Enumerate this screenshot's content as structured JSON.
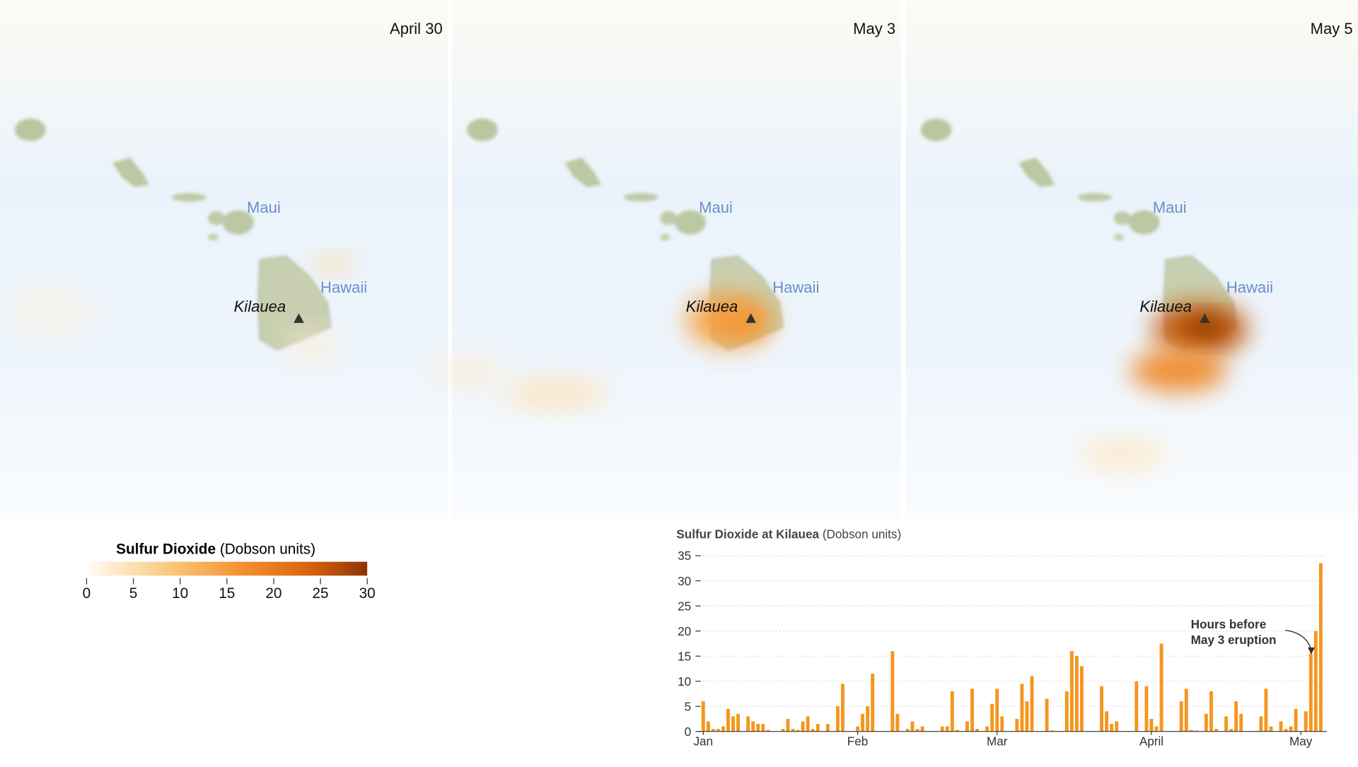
{
  "maps": {
    "panels": [
      {
        "date": "April 30"
      },
      {
        "date": "May 3"
      },
      {
        "date": "May 5"
      }
    ],
    "labels": {
      "maui": "Maui",
      "hawaii": "Hawaii",
      "kilauea": "Kilauea"
    }
  },
  "legend": {
    "title": "Sulfur Dioxide",
    "units": "(Dobson units)",
    "ticks": [
      0,
      5,
      10,
      15,
      20,
      25,
      30
    ],
    "range": [
      0,
      30
    ]
  },
  "chart_data": {
    "type": "bar",
    "title": "Sulfur Dioxide at Kilauea",
    "units": "(Dobson units)",
    "color": "#f5961f",
    "grid": true,
    "ylim": [
      0,
      35
    ],
    "yticks": [
      0,
      5,
      10,
      15,
      20,
      25,
      30,
      35
    ],
    "annotation": [
      "Hours before",
      "May 3 eruption"
    ],
    "categories": [
      "Jan",
      null,
      null,
      null,
      null,
      null,
      null,
      null,
      null,
      null,
      null,
      null,
      null,
      null,
      null,
      null,
      null,
      null,
      null,
      null,
      null,
      null,
      null,
      null,
      null,
      null,
      null,
      null,
      null,
      null,
      null,
      "Feb",
      null,
      null,
      null,
      null,
      null,
      null,
      null,
      null,
      null,
      null,
      null,
      null,
      null,
      null,
      null,
      null,
      null,
      null,
      null,
      null,
      null,
      null,
      null,
      null,
      null,
      null,
      null,
      "Mar",
      null,
      null,
      null,
      null,
      null,
      null,
      null,
      null,
      null,
      null,
      null,
      null,
      null,
      null,
      null,
      null,
      null,
      null,
      null,
      null,
      null,
      null,
      null,
      null,
      null,
      null,
      null,
      null,
      null,
      null,
      "April",
      null,
      null,
      null,
      null,
      null,
      null,
      null,
      null,
      null,
      null,
      null,
      null,
      null,
      null,
      null,
      null,
      null,
      null,
      null,
      null,
      null,
      null,
      null,
      null,
      null,
      null,
      null,
      null,
      null,
      "May",
      null,
      null,
      null,
      null
    ],
    "values": [
      6,
      2,
      0.5,
      0.5,
      1,
      4.5,
      3,
      3.5,
      0,
      3,
      2,
      1.5,
      1.5,
      0.3,
      0,
      0,
      0.5,
      2.5,
      0.5,
      0.3,
      2,
      3,
      0.5,
      1.5,
      0,
      1.5,
      0,
      5,
      9.5,
      0,
      0,
      1,
      3.5,
      5,
      11.5,
      0,
      0,
      0,
      16,
      3.5,
      0,
      0.5,
      2,
      0.5,
      1,
      0,
      0,
      0,
      1,
      1,
      8,
      0.3,
      0,
      2,
      8.5,
      0.5,
      0,
      1,
      5.5,
      8.5,
      3,
      0,
      0,
      2.5,
      9.5,
      6,
      11,
      0,
      0,
      6.5,
      0.2,
      0,
      0,
      8,
      16,
      15,
      13,
      0,
      0,
      0,
      9,
      4,
      1.5,
      2,
      0,
      0,
      0,
      10,
      0,
      9,
      2.5,
      1,
      17.5,
      0,
      0,
      0,
      6,
      8.5,
      0.3,
      0.2,
      0,
      3.5,
      8,
      0.5,
      0,
      3,
      0.5,
      6,
      3.5,
      0,
      0,
      0,
      3,
      8.5,
      1,
      0,
      2,
      0.5,
      1,
      4.5,
      0,
      4,
      15.5,
      20,
      33.5
    ]
  }
}
